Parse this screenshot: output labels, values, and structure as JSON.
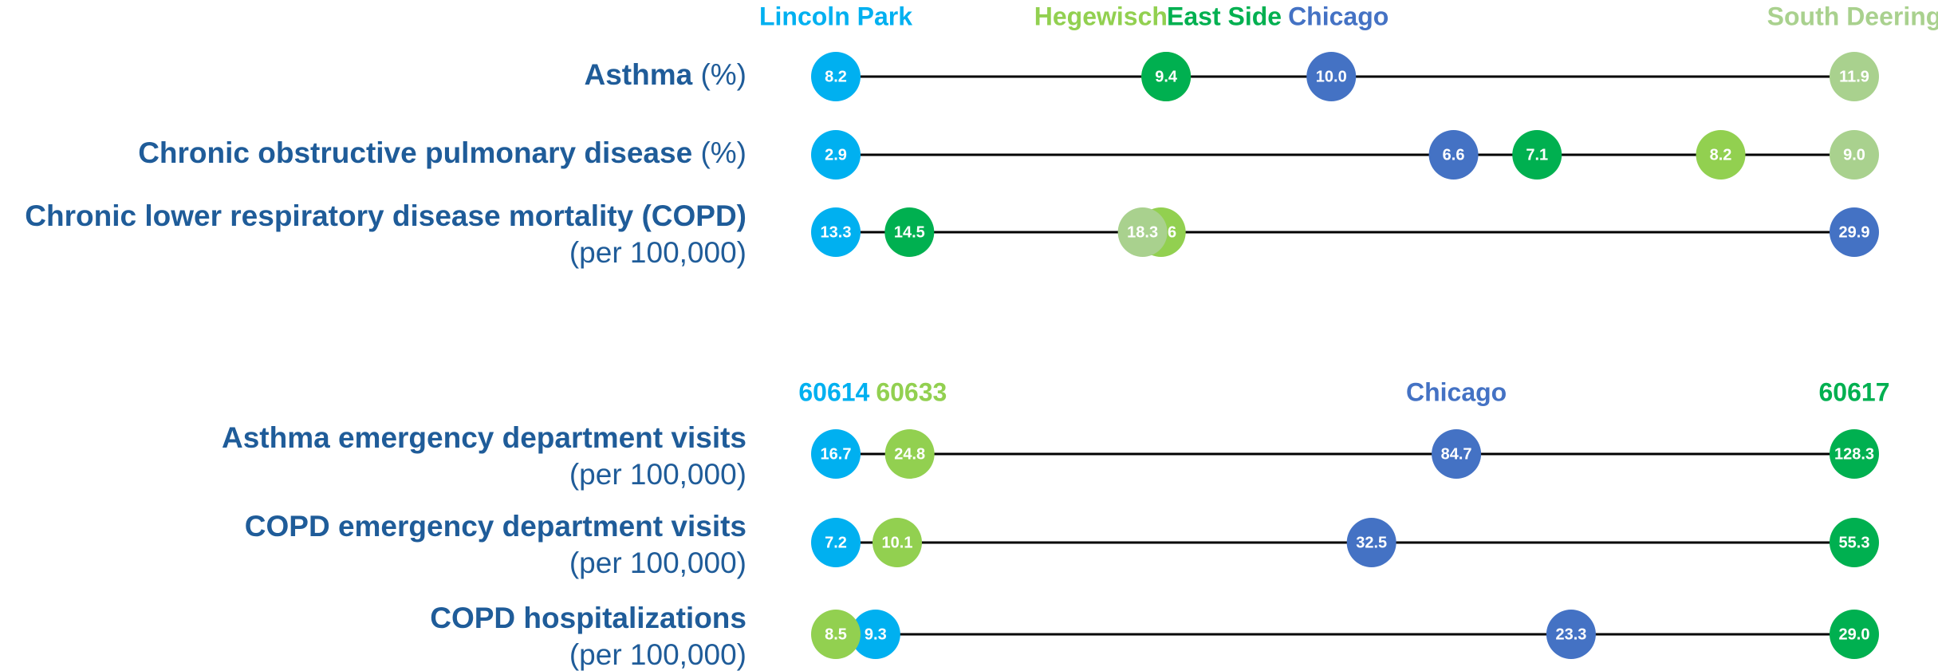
{
  "chart_data": [
    {
      "type": "dot",
      "categories": [
        "Asthma",
        "Chronic obstructive pulmonary disease",
        "Chronic lower respiratory disease mortality (COPD)"
      ],
      "units": [
        "(%)",
        "(%)",
        "(per 100,000)"
      ],
      "series": [
        {
          "name": "Lincoln Park",
          "color": "#00b0f0",
          "values": [
            8.2,
            2.9,
            13.3
          ],
          "value_labels": [
            "8.2",
            "2.9",
            "13.3"
          ]
        },
        {
          "name": "Hegewisch",
          "color": "#92d050",
          "values": [
            9.4,
            8.2,
            18.6
          ],
          "value_labels": [
            "9.4",
            "8.2",
            "18.6"
          ]
        },
        {
          "name": "East Side",
          "color": "#00b050",
          "values": [
            9.4,
            7.1,
            14.5
          ],
          "value_labels": [
            "9.4",
            "7.1",
            "14.5"
          ]
        },
        {
          "name": "Chicago",
          "color": "#4472c4",
          "values": [
            10.0,
            6.6,
            29.9
          ],
          "value_labels": [
            "10.0",
            "6.6",
            "29.9"
          ]
        },
        {
          "name": "South Deering",
          "color": "#a9d18e",
          "values": [
            11.9,
            9.0,
            18.3
          ],
          "value_labels": [
            "11.9",
            "9.0",
            "18.3"
          ]
        }
      ]
    },
    {
      "type": "dot",
      "categories": [
        "Asthma emergency department visits",
        "COPD emergency department visits",
        "COPD hospitalizations"
      ],
      "units": [
        "(per 100,000)",
        "(per 100,000)",
        "(per 100,000)"
      ],
      "series": [
        {
          "name": "60614",
          "color": "#00b0f0",
          "values": [
            16.7,
            7.2,
            9.3
          ],
          "value_labels": [
            "16.7",
            "7.2",
            "9.3"
          ]
        },
        {
          "name": "60633",
          "color": "#92d050",
          "values": [
            24.8,
            10.1,
            8.5
          ],
          "value_labels": [
            "24.8",
            "10.1",
            "8.5"
          ]
        },
        {
          "name": "Chicago",
          "color": "#4472c4",
          "values": [
            84.7,
            32.5,
            23.3
          ],
          "value_labels": [
            "84.7",
            "32.5",
            "23.3"
          ]
        },
        {
          "name": "60617",
          "color": "#00b050",
          "values": [
            128.3,
            55.3,
            29.0
          ],
          "value_labels": [
            "128.3",
            "55.3",
            "29.0"
          ]
        }
      ]
    }
  ]
}
